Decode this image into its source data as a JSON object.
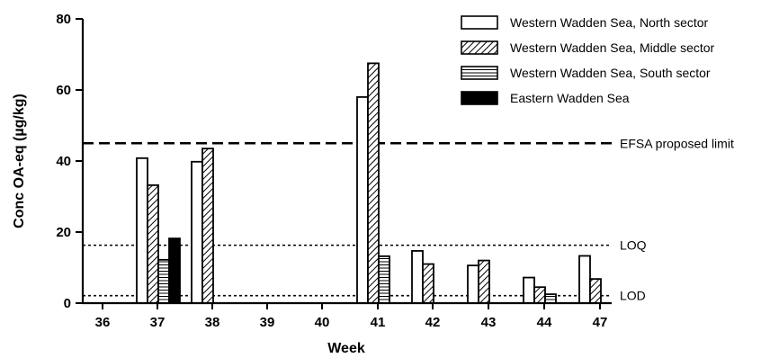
{
  "chart_data": {
    "type": "bar",
    "title": "",
    "xlabel": "Week",
    "ylabel": "Conc OA-eq (µg/kg)",
    "ylim": [
      0,
      80
    ],
    "yticks": [
      0,
      20,
      40,
      60,
      80
    ],
    "categories": [
      "36",
      "37",
      "38",
      "39",
      "40",
      "41",
      "42",
      "43",
      "44",
      "47"
    ],
    "series": [
      {
        "name": "Western Wadden Sea, North sector",
        "pattern": "open",
        "values": [
          null,
          40.8,
          39.8,
          null,
          null,
          58.0,
          14.7,
          10.6,
          7.2,
          13.3
        ]
      },
      {
        "name": "Western Wadden Sea, Middle sector",
        "pattern": "diagonal-hatch",
        "values": [
          null,
          33.2,
          43.5,
          null,
          null,
          67.5,
          11.0,
          12.0,
          4.5,
          6.8
        ]
      },
      {
        "name": "Western Wadden Sea, South sector",
        "pattern": "horizontal-lines",
        "values": [
          null,
          12.2,
          null,
          null,
          null,
          13.2,
          null,
          null,
          2.5,
          null
        ]
      },
      {
        "name": "Eastern Wadden Sea",
        "pattern": "solid-black",
        "values": [
          null,
          18.2,
          null,
          null,
          null,
          null,
          null,
          null,
          null,
          null
        ]
      }
    ],
    "reference_lines": [
      {
        "label": "EFSA proposed limit",
        "value": 45,
        "style": "dashed"
      },
      {
        "label": "LOQ",
        "value": 16.3,
        "style": "dotted"
      },
      {
        "label": "LOD",
        "value": 2.1,
        "style": "dotted"
      }
    ],
    "legend_position": "top-right",
    "grid": false
  }
}
